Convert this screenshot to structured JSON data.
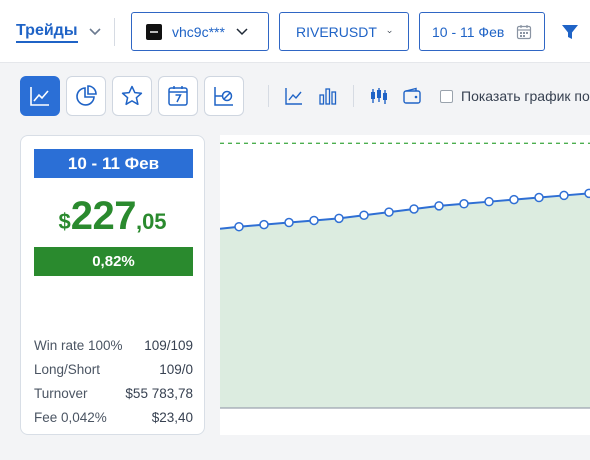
{
  "header": {
    "tab_label": "Трейды",
    "account_label": "vhc9c***",
    "symbol_label": "RIVERUSDT",
    "date_label": "10 - 11 Фев"
  },
  "toolbar": {
    "show_chart_label": "Показать график по",
    "show_chart_checked": false
  },
  "summary": {
    "date": "10 - 11 Фев",
    "pnl_currency": "$",
    "pnl_int": "227",
    "pnl_dec": ",05",
    "pnl_percent": "0,82%",
    "stats": [
      {
        "label": "Win rate 100%",
        "value": "109/109"
      },
      {
        "label": "Long/Short",
        "value": "109/0"
      },
      {
        "label": "Turnover",
        "value": "$55 783,78"
      },
      {
        "label": "Fee 0,042%",
        "value": "$23,40"
      }
    ]
  },
  "chart_data": {
    "type": "area",
    "title": "",
    "xlabel": "",
    "ylabel": "",
    "values": [
      0.0,
      1.0,
      2.0,
      3.0,
      4.0,
      5.5,
      7.0,
      8.5,
      10.0,
      11.0,
      12.0,
      13.0,
      14.0,
      15.0,
      16.0,
      17.0
    ],
    "ylim": [
      -87,
      44
    ],
    "target_y": 40,
    "colors": {
      "line": "#2f6fd4",
      "fill": "#dcece0",
      "target": "#4caf50",
      "baseline": "#9ca3af"
    }
  }
}
